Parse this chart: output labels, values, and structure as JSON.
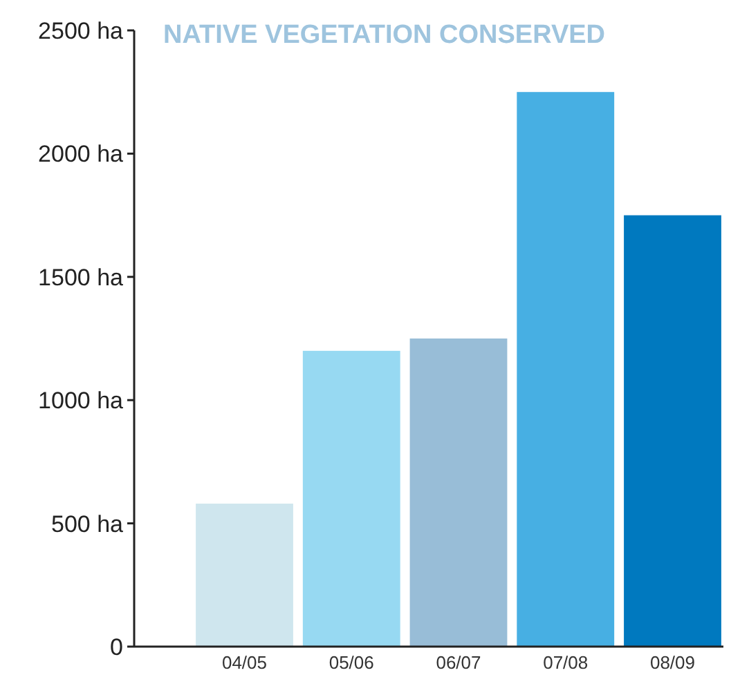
{
  "chart_data": {
    "type": "bar",
    "title": "NATIVE VEGETATION CONSERVED",
    "categories": [
      "04/05",
      "05/06",
      "06/07",
      "07/08",
      "08/09"
    ],
    "values": [
      580,
      1200,
      1250,
      2250,
      1750
    ],
    "colors": [
      "#cfe6ee",
      "#97d9f2",
      "#98bdd7",
      "#47afe3",
      "#0079bf"
    ],
    "ylim": [
      0,
      2500
    ],
    "yticks": [
      {
        "value": 0,
        "label": "0"
      },
      {
        "value": 500,
        "label": "500 ha"
      },
      {
        "value": 1000,
        "label": "1000 ha"
      },
      {
        "value": 1500,
        "label": "1500 ha"
      },
      {
        "value": 2000,
        "label": "2000 ha"
      },
      {
        "value": 2500,
        "label": "2500 ha"
      }
    ],
    "grid": false
  }
}
